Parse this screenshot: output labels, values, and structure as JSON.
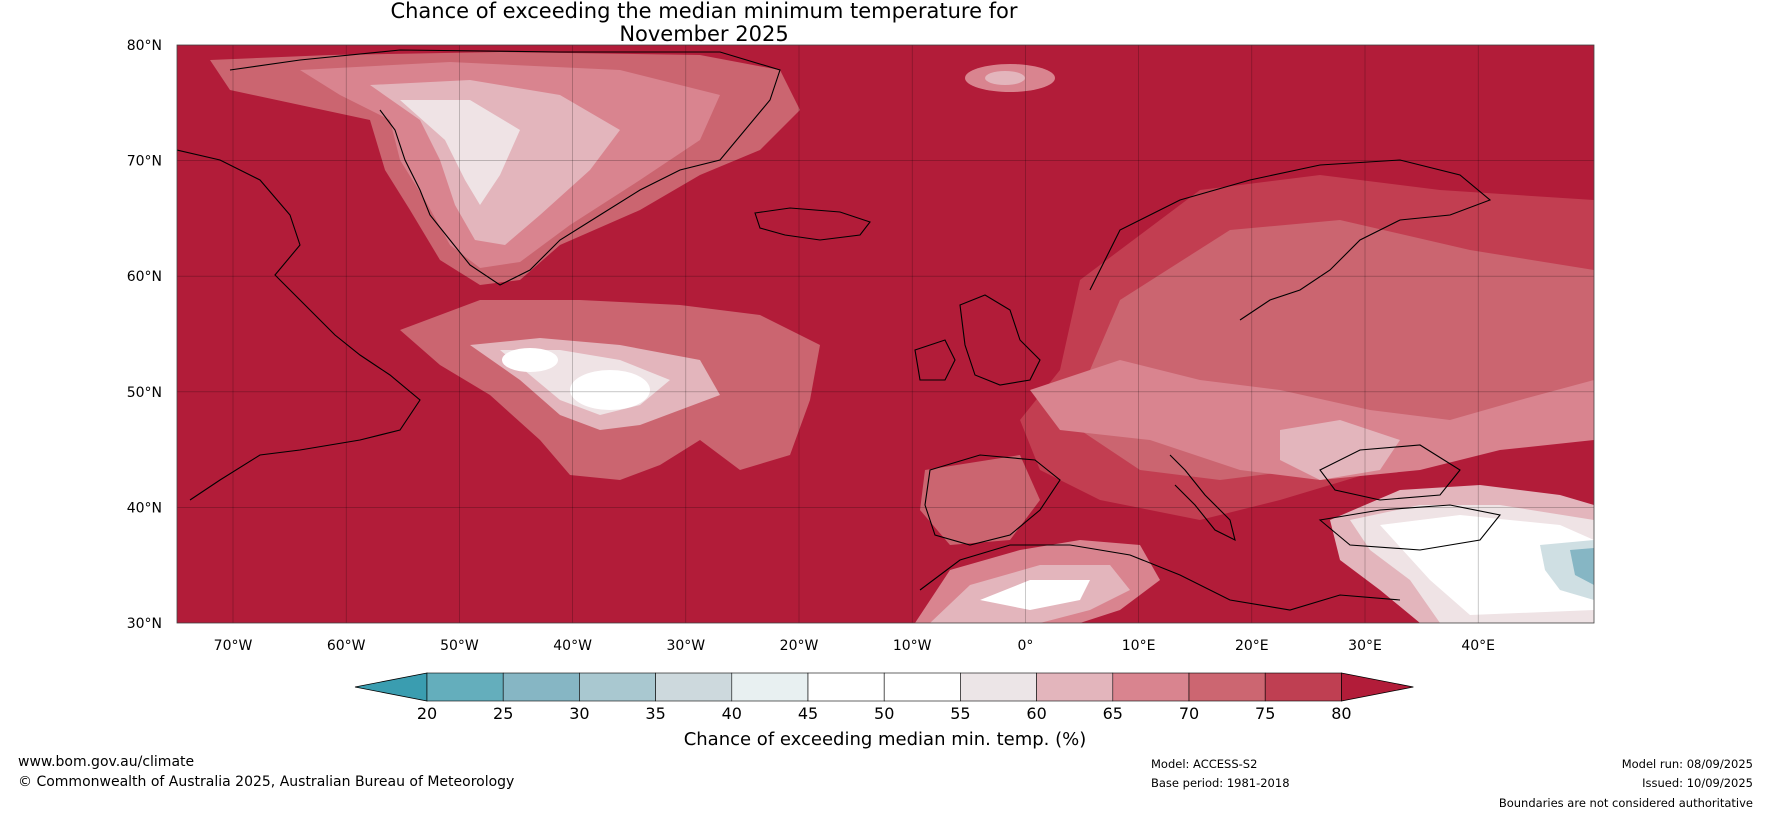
{
  "title_line1": "Chance of exceeding the median minimum temperature for",
  "title_line2": "November 2025",
  "lat_labels": [
    "80°N",
    "70°N",
    "60°N",
    "50°N",
    "40°N",
    "30°N"
  ],
  "lon_labels": [
    "70°W",
    "60°W",
    "50°W",
    "40°W",
    "30°W",
    "20°W",
    "10°W",
    "0°",
    "10°E",
    "20°E",
    "30°E",
    "40°E"
  ],
  "colorbar": {
    "label": "Chance of exceeding median min. temp. (%)",
    "ticks": [
      "20",
      "25",
      "30",
      "35",
      "40",
      "45",
      "50",
      "55",
      "60",
      "65",
      "70",
      "75",
      "80"
    ],
    "colors": [
      "#3a9db0",
      "#64aebc",
      "#86b6c4",
      "#a9c8d0",
      "#cdd9dd",
      "#e8f0f1",
      "#ffffff",
      "#ffffff",
      "#ece5e7",
      "#e3b5bc",
      "#d9848f",
      "#cc6671",
      "#bf3f52",
      "#b21c39"
    ]
  },
  "colors": {
    "base": "#b21c39",
    "c75": "#c23e51",
    "c70": "#cb6570",
    "c65": "#d9848f",
    "c60": "#e3b5bc",
    "c55": "#efe3e5",
    "c50": "#ffffff",
    "c40": "#cfdfe3",
    "c30": "#86b6c4"
  },
  "footer": {
    "website": "www.bom.gov.au/climate",
    "copyright": "© Commonwealth of Australia 2025, Australian Bureau of Meteorology",
    "model": "Model: ACCESS-S2",
    "base_period": "Base period: 1981-2018",
    "model_run": "Model run: 08/09/2025",
    "issued": "Issued: 10/09/2025",
    "disclaimer": "Boundaries are not considered authoritative"
  }
}
